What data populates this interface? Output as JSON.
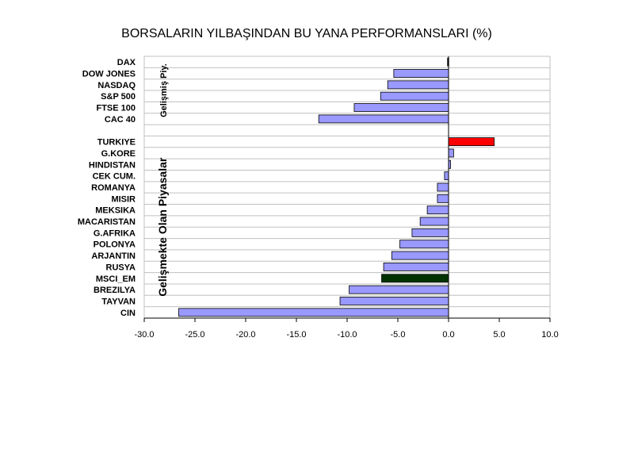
{
  "chart_data": {
    "type": "bar",
    "orientation": "horizontal",
    "title": "BORSALARIN YILBAŞINDAN BU YANA PERFORMANSLARI (%)",
    "xlabel": "",
    "ylabel": "",
    "xlim": [
      -30,
      10
    ],
    "xticks": [
      "-30.0",
      "-25.0",
      "-20.0",
      "-15.0",
      "-10.0",
      "-5.0",
      "0.0",
      "5.0",
      "10.0"
    ],
    "grid": true,
    "groups": [
      {
        "label": "Gelişmiş Piy.",
        "range": [
          0,
          5
        ]
      },
      {
        "label": "Gelişmekte Olan Piyasalar",
        "range": [
          7,
          22
        ]
      }
    ],
    "categories": [
      "DAX",
      "DOW JONES",
      "NASDAQ",
      "S&P 500",
      "FTSE 100",
      "CAC 40",
      "",
      "TURKIYE",
      "G.KORE",
      "HINDISTAN",
      "CEK CUM.",
      "ROMANYA",
      "MISIR",
      "MEKSIKA",
      "MACARISTAN",
      "G.AFRIKA",
      "POLONYA",
      "ARJANTIN",
      "RUSYA",
      "MSCI_EM",
      "BREZILYA",
      "TAYVAN",
      "CIN"
    ],
    "values": [
      -0.1,
      -5.4,
      -6.0,
      -6.7,
      -9.3,
      -12.8,
      null,
      4.5,
      0.5,
      0.2,
      -0.4,
      -1.1,
      -1.1,
      -2.1,
      -2.8,
      -3.6,
      -4.8,
      -5.6,
      -6.4,
      -6.6,
      -9.8,
      -10.7,
      -26.6
    ],
    "colors": {
      "default": "#9999ff",
      "TURKIYE": "#ff0000",
      "MSCI_EM": "#003300",
      "DAX": "#000000"
    }
  }
}
